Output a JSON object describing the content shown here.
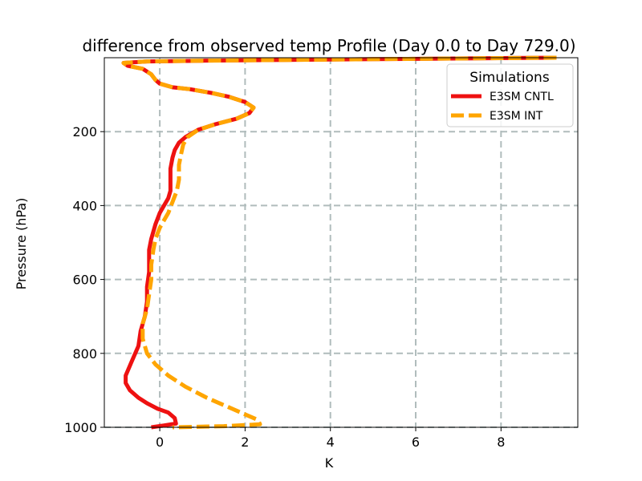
{
  "chart_data": {
    "type": "line",
    "title": "difference from observed temp Profile (Day 0.0 to Day 729.0)",
    "xlabel": "K",
    "ylabel": "Pressure (hPa)",
    "xlim": [
      -1.3,
      9.8
    ],
    "ylim": [
      1000,
      0
    ],
    "y_inverted": true,
    "x_ticks": [
      0,
      2,
      4,
      6,
      8
    ],
    "x_tick_labels": [
      "0",
      "2",
      "4",
      "6",
      "8"
    ],
    "y_ticks": [
      200,
      400,
      600,
      800,
      1000
    ],
    "y_tick_labels": [
      "200",
      "400",
      "600",
      "800",
      "1000"
    ],
    "grid": true,
    "legend": {
      "title": "Simulations",
      "position": "top-right",
      "entries": [
        "E3SM CNTL",
        "E3SM INT"
      ]
    },
    "series": [
      {
        "name": "E3SM CNTL",
        "color": "#ee1111",
        "style": "solid",
        "points": [
          [
            9.3,
            0
          ],
          [
            8,
            1
          ],
          [
            5,
            4
          ],
          [
            1,
            8
          ],
          [
            -0.3,
            10
          ],
          [
            -0.85,
            14
          ],
          [
            -0.75,
            22
          ],
          [
            -0.4,
            30
          ],
          [
            -0.2,
            45
          ],
          [
            -0.1,
            60
          ],
          [
            0,
            70
          ],
          [
            0.3,
            80
          ],
          [
            0.7,
            85
          ],
          [
            1.2,
            95
          ],
          [
            1.6,
            105
          ],
          [
            2.0,
            120
          ],
          [
            2.2,
            135
          ],
          [
            2.1,
            150
          ],
          [
            1.8,
            165
          ],
          [
            1.3,
            180
          ],
          [
            0.9,
            195
          ],
          [
            0.6,
            215
          ],
          [
            0.45,
            230
          ],
          [
            0.35,
            250
          ],
          [
            0.3,
            270
          ],
          [
            0.25,
            300
          ],
          [
            0.25,
            330
          ],
          [
            0.25,
            360
          ],
          [
            0.2,
            380
          ],
          [
            0.1,
            400
          ],
          [
            0.0,
            420
          ],
          [
            -0.1,
            450
          ],
          [
            -0.2,
            490
          ],
          [
            -0.25,
            520
          ],
          [
            -0.25,
            550
          ],
          [
            -0.25,
            580
          ],
          [
            -0.3,
            620
          ],
          [
            -0.3,
            660
          ],
          [
            -0.35,
            700
          ],
          [
            -0.45,
            740
          ],
          [
            -0.5,
            780
          ],
          [
            -0.65,
            820
          ],
          [
            -0.8,
            860
          ],
          [
            -0.8,
            880
          ],
          [
            -0.7,
            900
          ],
          [
            -0.5,
            920
          ],
          [
            -0.3,
            935
          ],
          [
            -0.05,
            950
          ],
          [
            0.2,
            960
          ],
          [
            0.35,
            975
          ],
          [
            0.38,
            990
          ],
          [
            0.1,
            995
          ],
          [
            -0.2,
            1000
          ]
        ]
      },
      {
        "name": "E3SM INT",
        "color": "#ffa500",
        "style": "dashed",
        "points": [
          [
            9.3,
            0
          ],
          [
            8,
            1
          ],
          [
            5,
            4
          ],
          [
            1,
            8
          ],
          [
            -0.3,
            10
          ],
          [
            -0.85,
            14
          ],
          [
            -0.75,
            22
          ],
          [
            -0.4,
            30
          ],
          [
            -0.2,
            45
          ],
          [
            -0.1,
            60
          ],
          [
            0,
            70
          ],
          [
            0.3,
            80
          ],
          [
            0.7,
            85
          ],
          [
            1.2,
            95
          ],
          [
            1.6,
            105
          ],
          [
            2.0,
            120
          ],
          [
            2.2,
            135
          ],
          [
            2.1,
            150
          ],
          [
            1.8,
            165
          ],
          [
            1.3,
            180
          ],
          [
            0.9,
            195
          ],
          [
            0.65,
            215
          ],
          [
            0.55,
            235
          ],
          [
            0.5,
            260
          ],
          [
            0.45,
            290
          ],
          [
            0.45,
            330
          ],
          [
            0.4,
            360
          ],
          [
            0.3,
            390
          ],
          [
            0.2,
            420
          ],
          [
            0.1,
            440
          ],
          [
            0.0,
            460
          ],
          [
            -0.1,
            490
          ],
          [
            -0.15,
            520
          ],
          [
            -0.2,
            560
          ],
          [
            -0.2,
            600
          ],
          [
            -0.25,
            640
          ],
          [
            -0.3,
            680
          ],
          [
            -0.4,
            720
          ],
          [
            -0.4,
            760
          ],
          [
            -0.3,
            800
          ],
          [
            -0.1,
            830
          ],
          [
            0.2,
            860
          ],
          [
            0.6,
            890
          ],
          [
            1.1,
            920
          ],
          [
            1.6,
            945
          ],
          [
            2.0,
            965
          ],
          [
            2.3,
            980
          ],
          [
            2.35,
            992
          ],
          [
            1.5,
            997
          ],
          [
            0.3,
            1000
          ]
        ]
      }
    ]
  }
}
